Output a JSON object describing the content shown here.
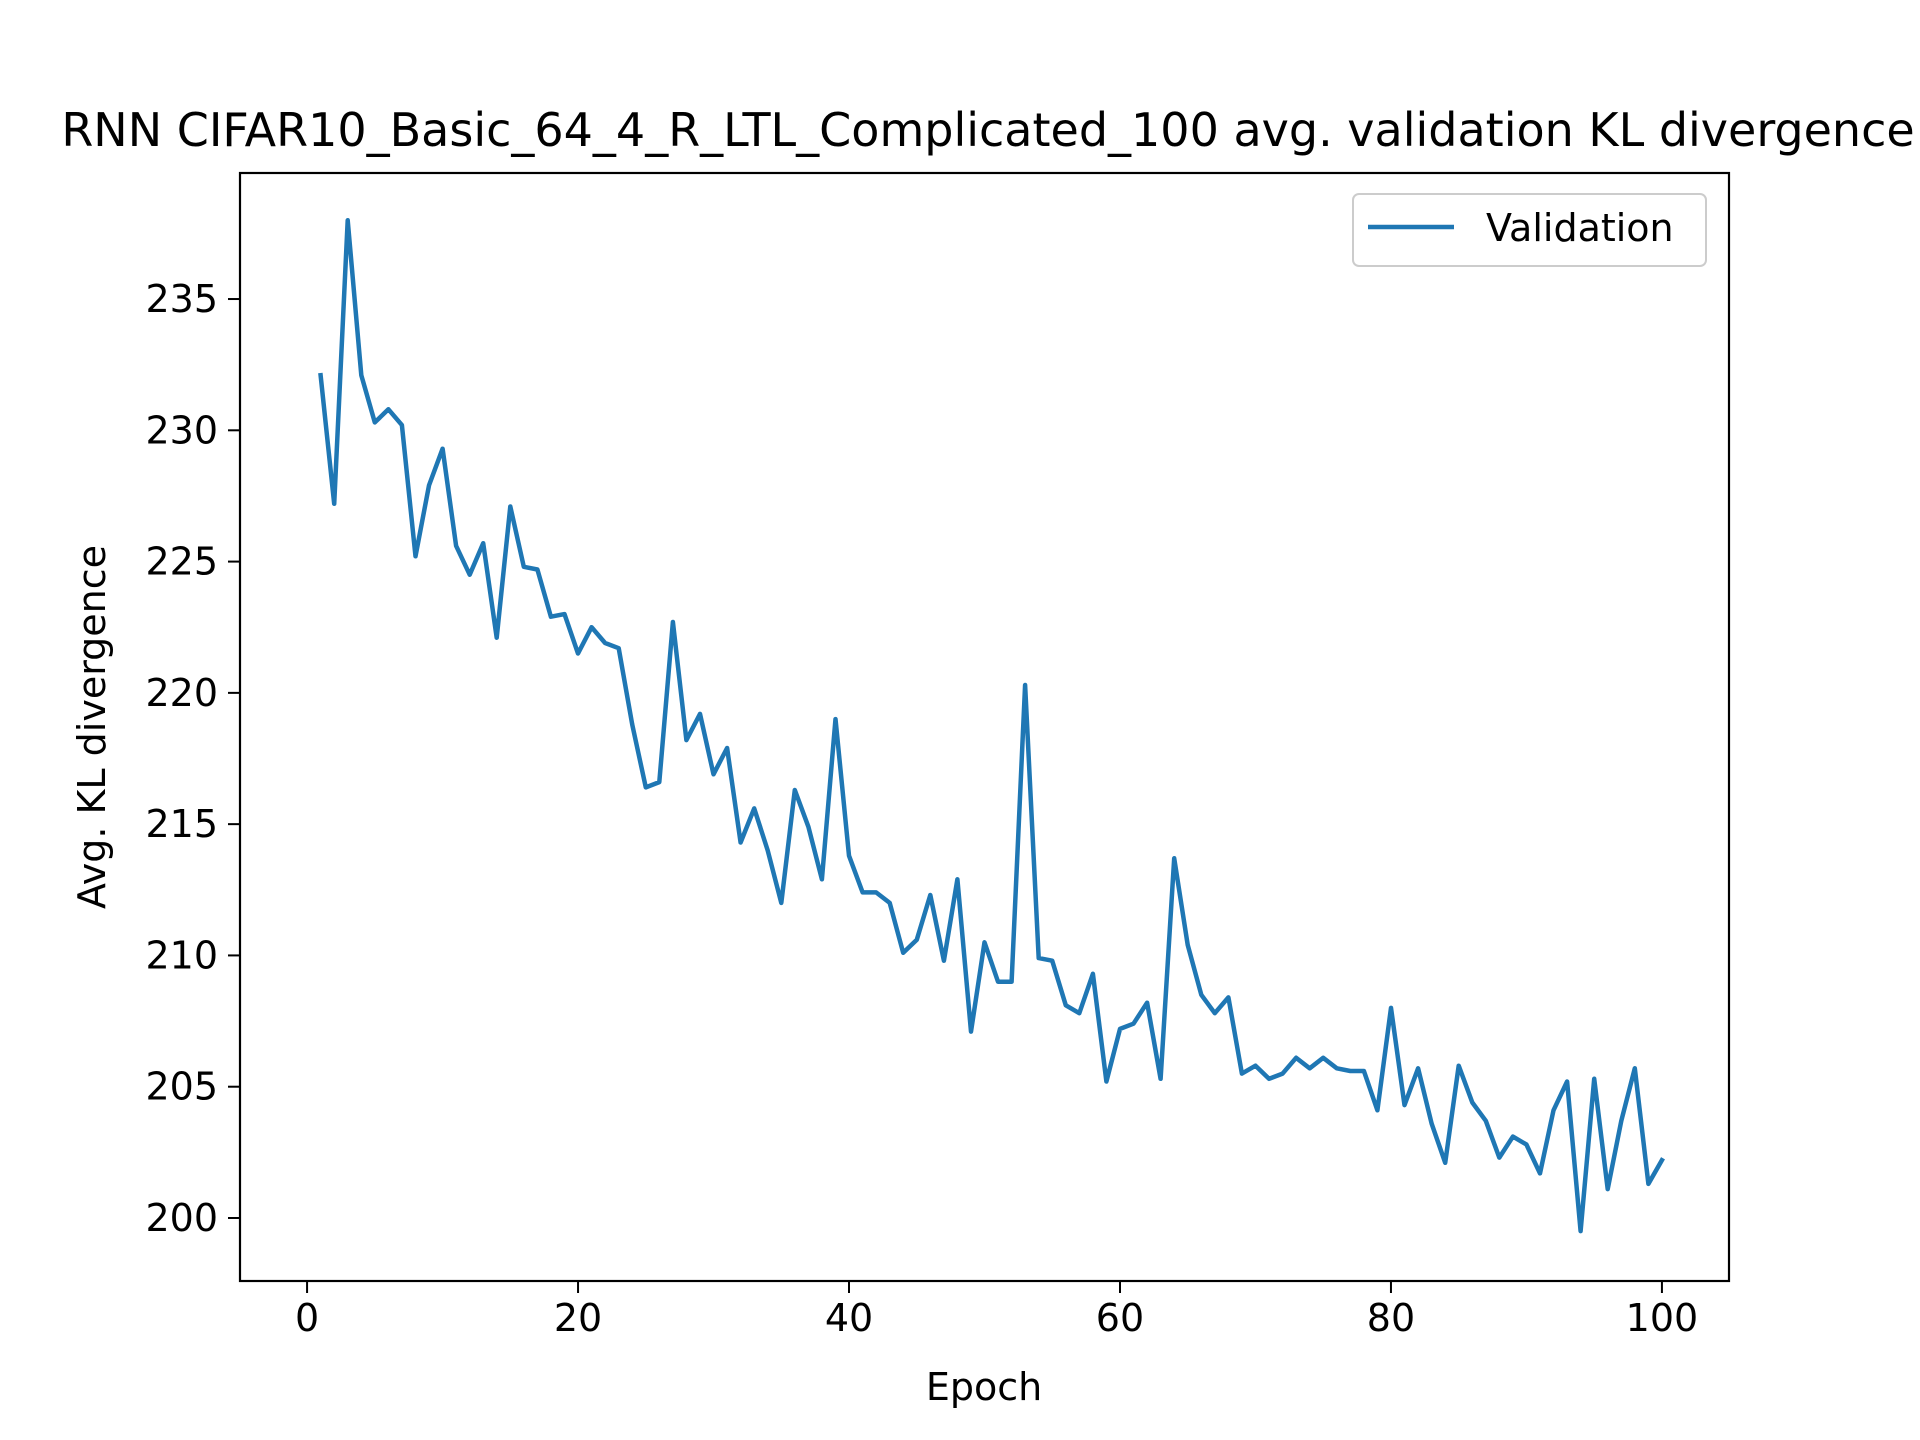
{
  "chart_data": {
    "type": "line",
    "title": "RNN CIFAR10_Basic_64_4_R_LTL_Complicated_100 avg. validation KL divergence",
    "xlabel": "Epoch",
    "ylabel": "Avg. KL divergence",
    "xlim": [
      -4.95,
      104.95
    ],
    "ylim": [
      197.6,
      239.8
    ],
    "xticks": [
      0,
      20,
      40,
      60,
      80,
      100
    ],
    "yticks": [
      200,
      205,
      210,
      215,
      220,
      225,
      230,
      235
    ],
    "grid": false,
    "legend_position": "top-right",
    "series": [
      {
        "name": "Validation",
        "color": "#1f77b4",
        "x": [
          1,
          2,
          3,
          4,
          5,
          6,
          7,
          8,
          9,
          10,
          11,
          12,
          13,
          14,
          15,
          16,
          17,
          18,
          19,
          20,
          21,
          22,
          23,
          24,
          25,
          26,
          27,
          28,
          29,
          30,
          31,
          32,
          33,
          34,
          35,
          36,
          37,
          38,
          39,
          40,
          41,
          42,
          43,
          44,
          45,
          46,
          47,
          48,
          49,
          50,
          51,
          52,
          53,
          54,
          55,
          56,
          57,
          58,
          59,
          60,
          61,
          62,
          63,
          64,
          65,
          66,
          67,
          68,
          69,
          70,
          71,
          72,
          73,
          74,
          75,
          76,
          77,
          78,
          79,
          80,
          81,
          82,
          83,
          84,
          85,
          86,
          87,
          88,
          89,
          90,
          91,
          92,
          93,
          94,
          95,
          96,
          97,
          98,
          99,
          100
        ],
        "y": [
          232.1,
          227.2,
          238.0,
          232.1,
          230.3,
          230.8,
          230.2,
          225.2,
          227.9,
          229.3,
          225.6,
          224.5,
          225.7,
          222.1,
          227.1,
          224.8,
          224.7,
          222.9,
          223.0,
          221.5,
          222.5,
          221.9,
          221.7,
          218.8,
          216.4,
          216.6,
          222.7,
          218.2,
          219.2,
          216.9,
          217.9,
          214.3,
          215.6,
          214.0,
          212.0,
          216.3,
          214.9,
          212.9,
          219.0,
          213.8,
          212.4,
          212.4,
          212.0,
          210.1,
          210.6,
          212.3,
          209.8,
          212.9,
          207.1,
          210.5,
          209.0,
          209.0,
          220.3,
          209.9,
          209.8,
          208.1,
          207.8,
          209.3,
          205.2,
          207.2,
          207.4,
          208.2,
          205.3,
          213.7,
          210.4,
          208.5,
          207.8,
          208.4,
          205.5,
          205.8,
          205.3,
          205.5,
          206.1,
          205.7,
          206.1,
          205.7,
          205.6,
          205.6,
          204.1,
          208.0,
          204.3,
          205.7,
          203.6,
          202.1,
          205.8,
          204.4,
          203.7,
          202.3,
          203.1,
          202.8,
          201.7,
          204.1,
          205.2,
          199.5,
          205.3,
          201.1,
          203.7,
          205.7,
          201.3,
          202.2
        ]
      }
    ]
  }
}
